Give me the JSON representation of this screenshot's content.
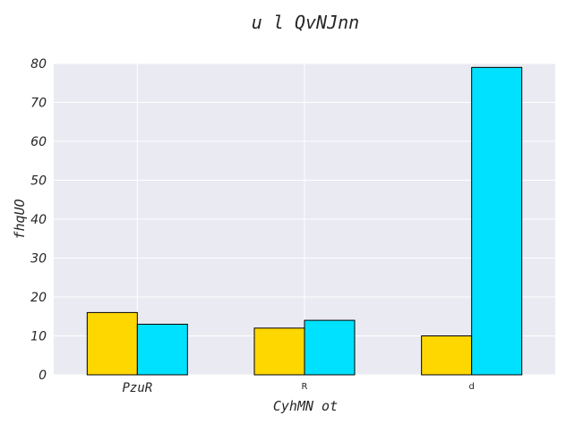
{
  "chart_data": {
    "type": "bar",
    "title": "u l QvNJnn",
    "xlabel": "CyhMN ot",
    "ylabel": "fhqUO",
    "categories": [
      "PzuR",
      "R",
      "d"
    ],
    "series": [
      {
        "values": [
          16,
          12,
          10
        ],
        "color": "#FFD700"
      },
      {
        "values": [
          13,
          14,
          79
        ],
        "color": "#00E1FF"
      }
    ],
    "ylim": [
      0,
      80
    ],
    "yticks": [
      "0",
      "10",
      "20",
      "30",
      "40",
      "50",
      "60",
      "70",
      "80"
    ],
    "grid": true,
    "background": "#EAEAF2",
    "gridcolor": "#FFFFFF",
    "legend": "none"
  }
}
